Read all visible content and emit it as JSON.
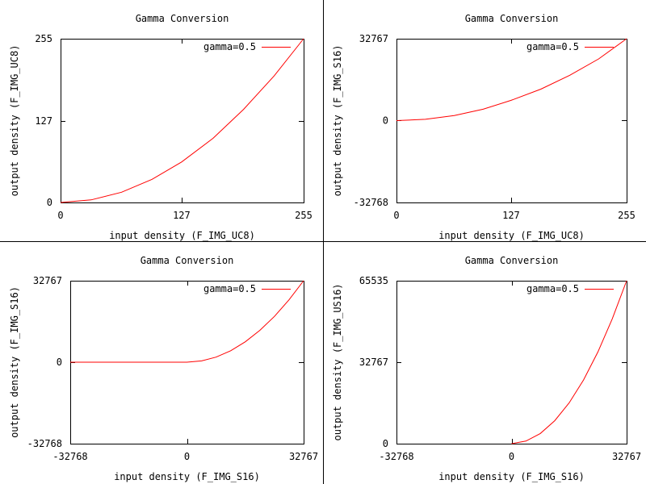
{
  "chart_data": [
    {
      "type": "line",
      "title": "Gamma Conversion",
      "xlabel": "input density (F_IMG_UC8)",
      "ylabel": "output density (F_IMG_UC8)",
      "xlim": [
        0,
        255
      ],
      "ylim": [
        0,
        255
      ],
      "xticks": [
        0,
        127,
        255
      ],
      "yticks": [
        0,
        127,
        255
      ],
      "xtick_labels": [
        "0",
        "127",
        "255"
      ],
      "ytick_labels": [
        "0",
        "127",
        "255"
      ],
      "legend": "top-right",
      "grid": false,
      "series": [
        {
          "name": "gamma=0.5",
          "color": "#ff0000",
          "x": [
            0,
            32,
            64,
            96,
            127,
            160,
            192,
            224,
            255
          ],
          "y": [
            0,
            4,
            16,
            36,
            63,
            100,
            145,
            197,
            255
          ]
        }
      ]
    },
    {
      "type": "line",
      "title": "Gamma Conversion",
      "xlabel": "input density (F_IMG_UC8)",
      "ylabel": "output density (F_IMG_S16)",
      "xlim": [
        0,
        255
      ],
      "ylim": [
        -32768,
        32767
      ],
      "xticks": [
        0,
        127,
        255
      ],
      "yticks": [
        -32768,
        0,
        32767
      ],
      "xtick_labels": [
        "0",
        "127",
        "255"
      ],
      "ytick_labels": [
        "-32768",
        "0",
        "32767"
      ],
      "legend": "top-right",
      "grid": false,
      "series": [
        {
          "name": "gamma=0.5",
          "color": "#ff0000",
          "x": [
            0,
            32,
            64,
            96,
            127,
            160,
            192,
            224,
            255
          ],
          "y": [
            0,
            504,
            2016,
            4536,
            8100,
            12600,
            18144,
            24696,
            32767
          ]
        }
      ]
    },
    {
      "type": "line",
      "title": "Gamma Conversion",
      "xlabel": "input density (F_IMG_S16)",
      "ylabel": "output density (F_IMG_S16)",
      "xlim": [
        -32768,
        32767
      ],
      "ylim": [
        -32768,
        32767
      ],
      "xticks": [
        -32768,
        0,
        32767
      ],
      "yticks": [
        -32768,
        0,
        32767
      ],
      "xtick_labels": [
        "-32768",
        "0",
        "32767"
      ],
      "ytick_labels": [
        "-32768",
        "0",
        "32767"
      ],
      "legend": "top-right",
      "grid": false,
      "series": [
        {
          "name": "gamma=0.5",
          "color": "#ff0000",
          "x": [
            -32768,
            -16384,
            0,
            4096,
            8192,
            12288,
            16384,
            20480,
            24576,
            28672,
            32767
          ],
          "y": [
            0,
            0,
            0,
            512,
            2048,
            4608,
            8192,
            12800,
            18432,
            25088,
            32767
          ]
        }
      ]
    },
    {
      "type": "line",
      "title": "Gamma Conversion",
      "xlabel": "input density (F_IMG_S16)",
      "ylabel": "output density (F_IMG_US16)",
      "xlim": [
        -32768,
        32767
      ],
      "ylim": [
        0,
        65535
      ],
      "xticks": [
        -32768,
        0,
        32767
      ],
      "yticks": [
        0,
        32767,
        65535
      ],
      "xtick_labels": [
        "-32768",
        "0",
        "32767"
      ],
      "ytick_labels": [
        "0",
        "32767",
        "65535"
      ],
      "legend": "top-right",
      "grid": false,
      "series": [
        {
          "name": "gamma=0.5",
          "color": "#ff0000",
          "x": [
            0,
            4096,
            8192,
            12288,
            16384,
            20480,
            24576,
            28672,
            32767
          ],
          "y": [
            0,
            1024,
            4096,
            9216,
            16384,
            25600,
            36864,
            50176,
            65535
          ]
        }
      ]
    }
  ]
}
